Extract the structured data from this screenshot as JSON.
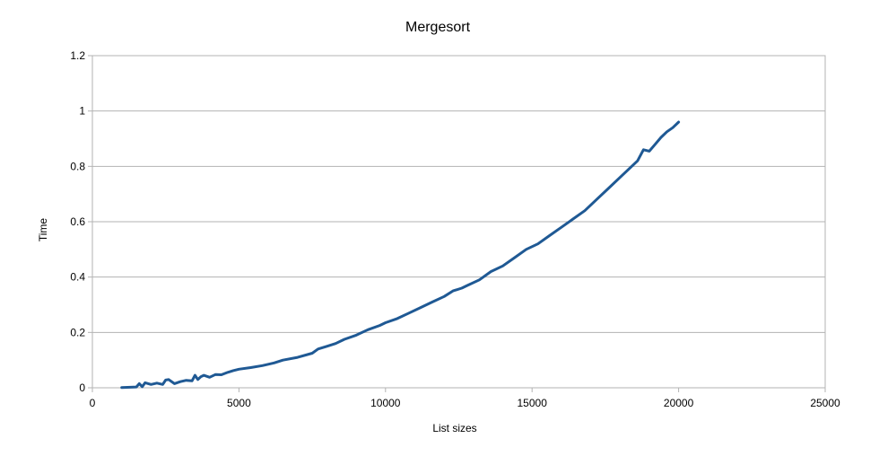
{
  "chart_data": {
    "type": "line",
    "title": "Mergesort",
    "xlabel": "List sizes",
    "ylabel": "Time",
    "xlim": [
      0,
      25000
    ],
    "ylim": [
      0,
      1.2
    ],
    "xticks": [
      0,
      5000,
      10000,
      15000,
      20000,
      25000
    ],
    "yticks": [
      0,
      0.2,
      0.4,
      0.6,
      0.8,
      1,
      1.2
    ],
    "xtick_labels": [
      "0",
      "5000",
      "10000",
      "15000",
      "20000",
      "25000"
    ],
    "ytick_labels": [
      "0",
      "0.2",
      "0.4",
      "0.6",
      "0.8",
      "1",
      "1.2"
    ],
    "grid": "horizontal",
    "legend": "none",
    "series": [
      {
        "color": "#1f5994",
        "x": [
          1000,
          1500,
          1600,
          1700,
          1800,
          2000,
          2200,
          2400,
          2500,
          2600,
          2800,
          3000,
          3200,
          3400,
          3500,
          3600,
          3700,
          3800,
          4000,
          4200,
          4400,
          4600,
          4800,
          5000,
          5400,
          5800,
          6000,
          6200,
          6500,
          7000,
          7500,
          7700,
          8000,
          8300,
          8600,
          9000,
          9400,
          9800,
          10000,
          10400,
          10800,
          11200,
          11600,
          12000,
          12300,
          12600,
          12800,
          13200,
          13600,
          14000,
          14400,
          14800,
          15200,
          15600,
          16000,
          16400,
          16800,
          17200,
          17600,
          18000,
          18400,
          18600,
          18800,
          19000,
          19200,
          19400,
          19600,
          19800,
          20000
        ],
        "y": [
          0.001,
          0.003,
          0.015,
          0.004,
          0.018,
          0.012,
          0.017,
          0.012,
          0.028,
          0.03,
          0.015,
          0.022,
          0.027,
          0.025,
          0.045,
          0.03,
          0.04,
          0.045,
          0.038,
          0.048,
          0.047,
          0.055,
          0.062,
          0.067,
          0.073,
          0.08,
          0.085,
          0.09,
          0.1,
          0.11,
          0.125,
          0.14,
          0.15,
          0.16,
          0.175,
          0.19,
          0.21,
          0.225,
          0.235,
          0.25,
          0.27,
          0.29,
          0.31,
          0.33,
          0.35,
          0.36,
          0.37,
          0.39,
          0.42,
          0.44,
          0.47,
          0.5,
          0.52,
          0.55,
          0.58,
          0.61,
          0.64,
          0.68,
          0.72,
          0.76,
          0.8,
          0.82,
          0.86,
          0.855,
          0.88,
          0.905,
          0.925,
          0.94,
          0.96
        ]
      }
    ]
  }
}
